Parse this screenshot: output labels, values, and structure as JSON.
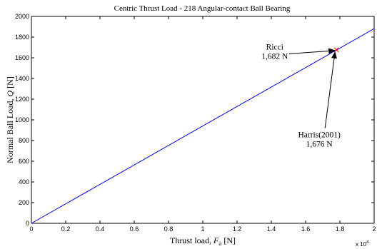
{
  "chart_data": {
    "type": "line",
    "title": "Centric Thrust Load - 218 Angular-contact Ball Bearing",
    "xlabel": {
      "prefix": "Thrust load, ",
      "symbol": "F",
      "subscript": "a",
      "suffix": " [N]"
    },
    "ylabel": {
      "prefix": "Normal Ball Load, ",
      "symbol": "Q",
      "suffix": " [N]"
    },
    "x_multiplier": {
      "base": "x 10",
      "exponent": "4"
    },
    "xlim": [
      0,
      2
    ],
    "ylim": [
      0,
      2000
    ],
    "x_ticks": [
      0,
      0.2,
      0.4,
      0.6,
      0.8,
      1,
      1.2,
      1.4,
      1.6,
      1.8,
      2
    ],
    "y_ticks": [
      0,
      200,
      400,
      600,
      800,
      1000,
      1200,
      1400,
      1600,
      1800,
      2000
    ],
    "x_tick_labels": [
      "0",
      "0.2",
      "0.4",
      "0.6",
      "0.8",
      "1",
      "1.2",
      "1.4",
      "1.6",
      "1.8",
      "2"
    ],
    "y_tick_labels": [
      "0",
      "200",
      "400",
      "600",
      "800",
      "1000",
      "1200",
      "1400",
      "1600",
      "1800",
      "2000"
    ],
    "grid": false,
    "series": [
      {
        "color": "#0000ff",
        "x": [
          0,
          2
        ],
        "y": [
          0,
          1882
        ]
      }
    ],
    "point": {
      "x": 1.78,
      "y": 1677,
      "marker": "x",
      "color": "#ff0000"
    },
    "annotations": [
      {
        "lines": [
          "Ricci",
          "1,682 N"
        ],
        "text_x": 1.42,
        "text_y": 1680
      },
      {
        "lines": [
          "Harris(2001)",
          "1,676 N"
        ],
        "text_x": 1.68,
        "text_y": 830
      }
    ]
  }
}
